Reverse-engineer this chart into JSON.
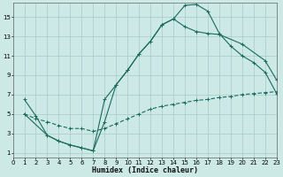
{
  "xlabel": "Humidex (Indice chaleur)",
  "bg_color": "#cce9e6",
  "grid_color": "#a8ccc9",
  "line_color": "#1a6b5e",
  "xlim": [
    0,
    23
  ],
  "ylim": [
    0.5,
    16.5
  ],
  "xticks": [
    0,
    1,
    2,
    3,
    4,
    5,
    6,
    7,
    8,
    9,
    10,
    11,
    12,
    13,
    14,
    15,
    16,
    17,
    18,
    19,
    20,
    21,
    22,
    23
  ],
  "yticks": [
    1,
    3,
    5,
    7,
    9,
    11,
    13,
    15
  ],
  "line1_x": [
    1,
    2,
    3,
    4,
    5,
    6,
    7,
    8,
    9,
    10,
    11,
    12,
    13,
    14,
    15,
    16,
    17,
    18,
    19,
    20,
    21,
    22,
    23
  ],
  "line1_y": [
    6.5,
    4.8,
    2.8,
    2.2,
    1.8,
    1.5,
    1.2,
    4.2,
    8.0,
    9.5,
    11.2,
    12.5,
    14.2,
    14.8,
    16.2,
    16.3,
    15.6,
    13.3,
    12.0,
    11.0,
    10.3,
    9.3,
    7.1
  ],
  "line2_x": [
    1,
    3,
    4,
    5,
    6,
    7,
    8,
    9,
    10,
    11,
    12,
    13,
    14,
    15,
    16,
    17,
    18,
    20,
    22,
    23
  ],
  "line2_y": [
    5.0,
    2.8,
    2.2,
    1.8,
    1.5,
    1.2,
    6.5,
    8.0,
    9.5,
    11.2,
    12.5,
    14.2,
    14.8,
    14.0,
    13.5,
    13.3,
    13.2,
    12.2,
    10.5,
    8.5
  ],
  "line3_x": [
    1,
    2,
    3,
    4,
    5,
    6,
    7,
    8,
    9,
    10,
    11,
    12,
    13,
    14,
    15,
    16,
    17,
    18,
    19,
    20,
    21,
    22,
    23
  ],
  "line3_y": [
    5.0,
    4.5,
    4.2,
    3.8,
    3.5,
    3.5,
    3.2,
    3.5,
    4.0,
    4.5,
    5.0,
    5.5,
    5.8,
    6.0,
    6.2,
    6.4,
    6.5,
    6.7,
    6.8,
    7.0,
    7.1,
    7.2,
    7.3
  ],
  "line3_style": "--"
}
